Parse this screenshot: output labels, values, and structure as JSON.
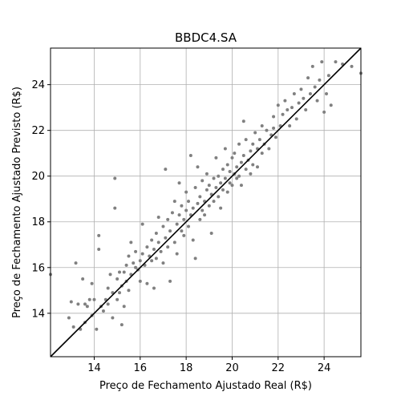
{
  "chart_data": {
    "type": "scatter",
    "title": "BBDC4.SA",
    "xlabel": "Preço de Fechamento Ajustado Real (R$)",
    "ylabel": "Preço de Fechamento Ajustado Previsto (R$)",
    "xlim": [
      12.1,
      25.6
    ],
    "ylim": [
      12.1,
      25.6
    ],
    "xticks": [
      14,
      16,
      18,
      20,
      22,
      24
    ],
    "yticks": [
      14,
      16,
      18,
      20,
      22,
      24
    ],
    "grid": true,
    "point_color": "#808080",
    "reference_line": {
      "from": [
        12.1,
        12.1
      ],
      "to": [
        25.6,
        25.6
      ],
      "color": "#000000"
    },
    "points": [
      [
        12.1,
        15.7
      ],
      [
        12.9,
        13.8
      ],
      [
        13.0,
        14.5
      ],
      [
        13.1,
        13.4
      ],
      [
        13.2,
        16.2
      ],
      [
        13.3,
        14.4
      ],
      [
        13.4,
        13.3
      ],
      [
        13.5,
        15.5
      ],
      [
        13.6,
        14.4
      ],
      [
        13.6,
        13.6
      ],
      [
        13.7,
        14.3
      ],
      [
        13.8,
        14.6
      ],
      [
        13.9,
        15.3
      ],
      [
        13.9,
        13.9
      ],
      [
        14.0,
        14.6
      ],
      [
        14.1,
        13.3
      ],
      [
        14.2,
        17.4
      ],
      [
        14.2,
        16.8
      ],
      [
        14.3,
        14.3
      ],
      [
        14.4,
        14.1
      ],
      [
        14.5,
        14.6
      ],
      [
        14.6,
        15.1
      ],
      [
        14.6,
        14.4
      ],
      [
        14.7,
        15.7
      ],
      [
        14.8,
        14.9
      ],
      [
        14.8,
        13.8
      ],
      [
        14.9,
        19.9
      ],
      [
        14.9,
        18.6
      ],
      [
        15.0,
        15.5
      ],
      [
        15.0,
        14.6
      ],
      [
        15.1,
        14.9
      ],
      [
        15.1,
        15.8
      ],
      [
        15.2,
        13.5
      ],
      [
        15.2,
        15.2
      ],
      [
        15.3,
        14.3
      ],
      [
        15.3,
        15.8
      ],
      [
        15.4,
        16.1
      ],
      [
        15.4,
        15.4
      ],
      [
        15.5,
        16.5
      ],
      [
        15.5,
        15.0
      ],
      [
        15.6,
        17.1
      ],
      [
        15.6,
        15.7
      ],
      [
        15.7,
        16.2
      ],
      [
        15.8,
        16.7
      ],
      [
        15.8,
        16.0
      ],
      [
        15.9,
        15.9
      ],
      [
        16.0,
        16.3
      ],
      [
        16.0,
        15.4
      ],
      [
        16.1,
        16.6
      ],
      [
        16.1,
        17.9
      ],
      [
        16.2,
        16.1
      ],
      [
        16.3,
        16.9
      ],
      [
        16.3,
        15.3
      ],
      [
        16.4,
        16.5
      ],
      [
        16.5,
        17.2
      ],
      [
        16.5,
        16.3
      ],
      [
        16.6,
        16.8
      ],
      [
        16.6,
        15.1
      ],
      [
        16.7,
        17.5
      ],
      [
        16.7,
        16.4
      ],
      [
        16.8,
        17.1
      ],
      [
        16.8,
        18.2
      ],
      [
        16.9,
        16.7
      ],
      [
        17.0,
        17.8
      ],
      [
        17.0,
        16.2
      ],
      [
        17.1,
        20.3
      ],
      [
        17.1,
        17.3
      ],
      [
        17.2,
        18.1
      ],
      [
        17.2,
        16.9
      ],
      [
        17.3,
        17.6
      ],
      [
        17.3,
        15.4
      ],
      [
        17.4,
        18.4
      ],
      [
        17.5,
        17.1
      ],
      [
        17.5,
        18.9
      ],
      [
        17.6,
        16.6
      ],
      [
        17.6,
        17.9
      ],
      [
        17.7,
        18.3
      ],
      [
        17.7,
        19.7
      ],
      [
        17.8,
        17.6
      ],
      [
        17.8,
        18.7
      ],
      [
        17.9,
        17.4
      ],
      [
        17.9,
        18.1
      ],
      [
        18.0,
        18.5
      ],
      [
        18.0,
        19.3
      ],
      [
        18.1,
        17.8
      ],
      [
        18.1,
        18.9
      ],
      [
        18.2,
        20.9
      ],
      [
        18.2,
        18.3
      ],
      [
        18.3,
        17.2
      ],
      [
        18.3,
        18.6
      ],
      [
        18.4,
        19.5
      ],
      [
        18.4,
        16.4
      ],
      [
        18.5,
        18.8
      ],
      [
        18.5,
        20.4
      ],
      [
        18.6,
        18.1
      ],
      [
        18.6,
        19.1
      ],
      [
        18.7,
        18.5
      ],
      [
        18.7,
        19.8
      ],
      [
        18.8,
        18.9
      ],
      [
        18.8,
        18.3
      ],
      [
        18.9,
        19.4
      ],
      [
        18.9,
        20.1
      ],
      [
        19.0,
        18.7
      ],
      [
        19.0,
        19.6
      ],
      [
        19.1,
        17.5
      ],
      [
        19.1,
        19.2
      ],
      [
        19.2,
        19.9
      ],
      [
        19.2,
        18.9
      ],
      [
        19.3,
        19.5
      ],
      [
        19.3,
        20.8
      ],
      [
        19.4,
        19.1
      ],
      [
        19.4,
        20.0
      ],
      [
        19.5,
        18.6
      ],
      [
        19.5,
        19.7
      ],
      [
        19.6,
        20.3
      ],
      [
        19.6,
        19.4
      ],
      [
        19.7,
        21.2
      ],
      [
        19.7,
        19.9
      ],
      [
        19.8,
        19.3
      ],
      [
        19.8,
        20.5
      ],
      [
        19.9,
        19.7
      ],
      [
        19.9,
        20.2
      ],
      [
        20.0,
        20.8
      ],
      [
        20.0,
        19.6
      ],
      [
        20.1,
        20.1
      ],
      [
        20.1,
        21.0
      ],
      [
        20.2,
        19.9
      ],
      [
        20.2,
        20.4
      ],
      [
        20.3,
        21.4
      ],
      [
        20.3,
        20.0
      ],
      [
        20.4,
        20.6
      ],
      [
        20.4,
        19.6
      ],
      [
        20.5,
        22.4
      ],
      [
        20.5,
        20.9
      ],
      [
        20.6,
        20.3
      ],
      [
        20.6,
        21.6
      ],
      [
        20.7,
        20.7
      ],
      [
        20.8,
        20.1
      ],
      [
        20.8,
        21.1
      ],
      [
        20.9,
        21.4
      ],
      [
        20.9,
        20.5
      ],
      [
        21.0,
        21.9
      ],
      [
        21.1,
        21.2
      ],
      [
        21.1,
        20.4
      ],
      [
        21.2,
        21.6
      ],
      [
        21.3,
        22.2
      ],
      [
        21.3,
        21.0
      ],
      [
        21.4,
        21.4
      ],
      [
        21.5,
        22.0
      ],
      [
        21.6,
        21.2
      ],
      [
        21.7,
        21.8
      ],
      [
        21.8,
        22.6
      ],
      [
        21.8,
        22.1
      ],
      [
        21.9,
        21.7
      ],
      [
        22.0,
        23.1
      ],
      [
        22.1,
        22.2
      ],
      [
        22.2,
        22.7
      ],
      [
        22.3,
        23.3
      ],
      [
        22.4,
        22.9
      ],
      [
        22.5,
        22.2
      ],
      [
        22.6,
        23.0
      ],
      [
        22.7,
        23.6
      ],
      [
        22.8,
        22.5
      ],
      [
        22.9,
        23.2
      ],
      [
        23.0,
        23.8
      ],
      [
        23.1,
        23.4
      ],
      [
        23.2,
        22.9
      ],
      [
        23.3,
        24.3
      ],
      [
        23.4,
        23.6
      ],
      [
        23.5,
        24.8
      ],
      [
        23.6,
        23.9
      ],
      [
        23.7,
        23.3
      ],
      [
        23.8,
        24.2
      ],
      [
        23.9,
        25.0
      ],
      [
        24.0,
        22.8
      ],
      [
        24.1,
        23.6
      ],
      [
        24.2,
        24.4
      ],
      [
        24.3,
        23.1
      ],
      [
        24.5,
        25.0
      ],
      [
        24.8,
        24.9
      ],
      [
        25.2,
        24.8
      ],
      [
        25.6,
        24.5
      ]
    ]
  }
}
